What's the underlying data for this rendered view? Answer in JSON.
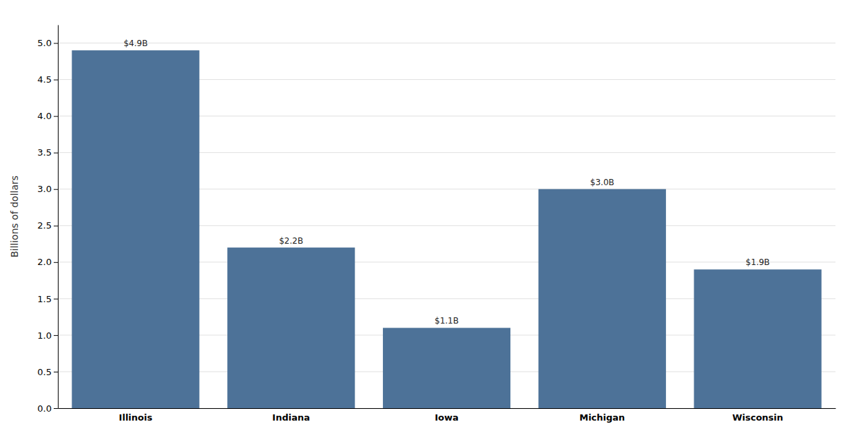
{
  "chart_data": {
    "type": "bar",
    "categories": [
      "Illinois",
      "Indiana",
      "Iowa",
      "Michigan",
      "Wisconsin"
    ],
    "values": [
      4.9,
      2.2,
      1.1,
      3.0,
      1.9
    ],
    "value_labels": [
      "$4.9B",
      "$2.2B",
      "$1.1B",
      "$3.0B",
      "$1.9B"
    ],
    "color": "#4d7298",
    "ylabel": "Billions of dollars",
    "ylim": [
      0,
      5.25
    ],
    "yticks": [
      {
        "value": 0,
        "label": "0.0"
      },
      0.5,
      {
        "value": 1,
        "label": "1.0"
      },
      1.5,
      {
        "value": 2,
        "label": "2.0"
      },
      2.5,
      {
        "value": 3,
        "label": "3.0"
      },
      3.5,
      {
        "value": 4,
        "label": "4.0"
      },
      4.5,
      {
        "value": 5,
        "label": "5.0"
      }
    ],
    "grid": true,
    "data_labels": true
  }
}
